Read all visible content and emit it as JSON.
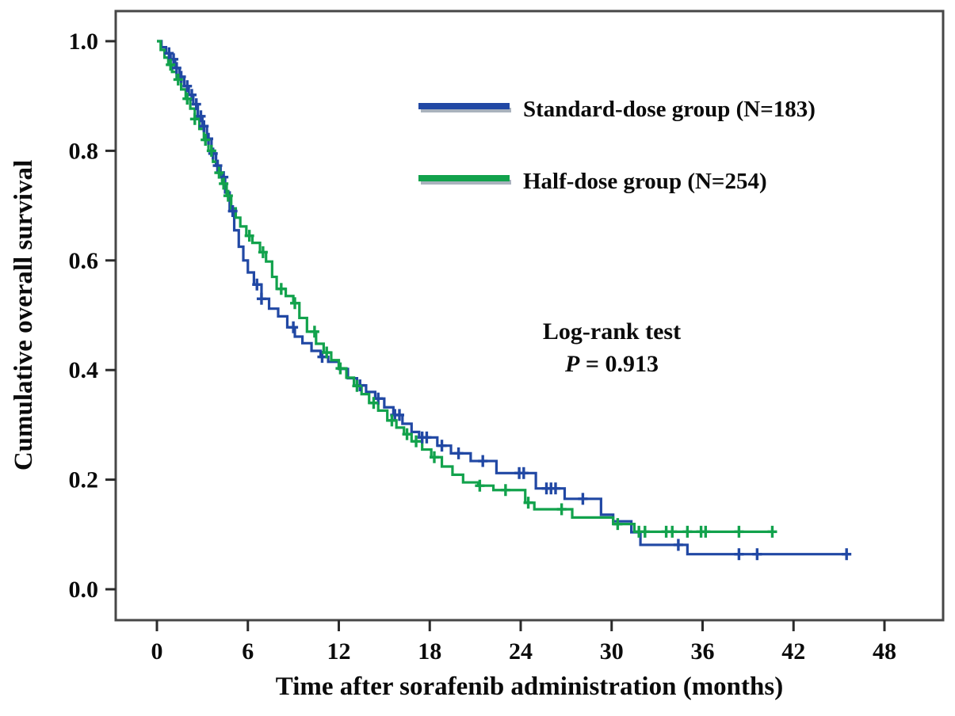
{
  "figure": {
    "background": "#ffffff",
    "frame_color": "#474747",
    "tick_color": "#2b2b2b",
    "text_color": "#0b0b0b"
  },
  "chart_data": {
    "type": "line",
    "subtype": "kaplan-meier-step",
    "title": "",
    "xlabel": "Time after sorafenib administration (months)",
    "ylabel": "Cumulative overall survival",
    "xlim": [
      0,
      48
    ],
    "ylim": [
      0.0,
      1.0
    ],
    "grid": false,
    "legend_position": "upper right inside",
    "x_ticks": [
      0,
      6,
      12,
      18,
      24,
      30,
      36,
      42,
      48
    ],
    "x_tick_labels": [
      "0",
      "6",
      "12",
      "18",
      "24",
      "30",
      "36",
      "42",
      "48"
    ],
    "y_ticks": [
      1.0,
      0.8,
      0.6,
      0.4,
      0.2,
      0.0
    ],
    "y_tick_labels": [
      "1.0",
      "0.8",
      "0.6",
      "0.4",
      "0.2",
      "0.0"
    ],
    "annotation": {
      "title": "Log-rank test",
      "p_symbol": "P",
      "p_rest": " = 0.913",
      "p_value": "0.913"
    },
    "series": [
      {
        "name": "Standard-dose group (N=183)",
        "n": 183,
        "color": "#2148a4",
        "end": 45.5,
        "steps": [
          [
            0,
            1.0
          ],
          [
            0.3,
            0.989
          ],
          [
            0.6,
            0.978
          ],
          [
            0.9,
            0.967
          ],
          [
            1.2,
            0.951
          ],
          [
            1.5,
            0.935
          ],
          [
            1.8,
            0.918
          ],
          [
            2.1,
            0.902
          ],
          [
            2.4,
            0.885
          ],
          [
            2.7,
            0.863
          ],
          [
            3.0,
            0.845
          ],
          [
            3.3,
            0.822
          ],
          [
            3.6,
            0.795
          ],
          [
            3.9,
            0.773
          ],
          [
            4.2,
            0.752
          ],
          [
            4.5,
            0.724
          ],
          [
            4.8,
            0.69
          ],
          [
            5.1,
            0.655
          ],
          [
            5.4,
            0.625
          ],
          [
            5.7,
            0.6
          ],
          [
            6.0,
            0.578
          ],
          [
            6.4,
            0.556
          ],
          [
            6.9,
            0.53
          ],
          [
            7.4,
            0.512
          ],
          [
            8.0,
            0.498
          ],
          [
            8.6,
            0.478
          ],
          [
            9.1,
            0.461
          ],
          [
            9.6,
            0.449
          ],
          [
            10.2,
            0.435
          ],
          [
            10.8,
            0.424
          ],
          [
            11.3,
            0.415
          ],
          [
            12.0,
            0.402
          ],
          [
            12.6,
            0.385
          ],
          [
            13.2,
            0.372
          ],
          [
            13.8,
            0.36
          ],
          [
            14.4,
            0.348
          ],
          [
            15.0,
            0.332
          ],
          [
            15.6,
            0.318
          ],
          [
            16.2,
            0.302
          ],
          [
            16.8,
            0.287
          ],
          [
            17.3,
            0.277
          ],
          [
            18.5,
            0.262
          ],
          [
            19.4,
            0.248
          ],
          [
            20.7,
            0.234
          ],
          [
            22.4,
            0.212
          ],
          [
            25.0,
            0.184
          ],
          [
            26.9,
            0.165
          ],
          [
            29.3,
            0.136
          ],
          [
            30.1,
            0.124
          ],
          [
            31.3,
            0.104
          ],
          [
            31.9,
            0.081
          ],
          [
            35.0,
            0.064
          ]
        ],
        "censor_times": [
          0.8,
          1.1,
          1.3,
          1.6,
          2.0,
          2.3,
          2.6,
          2.9,
          3.1,
          3.4,
          3.7,
          4.0,
          4.4,
          5.0,
          6.6,
          6.9,
          9.0,
          10.9,
          13.4,
          14.6,
          15.7,
          16.0,
          17.5,
          17.8,
          18.8,
          19.9,
          21.5,
          23.9,
          24.2,
          25.7,
          26.0,
          26.3,
          28.1,
          34.4,
          38.4,
          39.6,
          45.5
        ]
      },
      {
        "name": "Half-dose group (N=254)",
        "n": 254,
        "color": "#12a24c",
        "end": 40.6,
        "steps": [
          [
            0,
            1.0
          ],
          [
            0.25,
            0.984
          ],
          [
            0.5,
            0.97
          ],
          [
            0.75,
            0.957
          ],
          [
            1.0,
            0.944
          ],
          [
            1.3,
            0.93
          ],
          [
            1.6,
            0.912
          ],
          [
            1.9,
            0.895
          ],
          [
            2.2,
            0.877
          ],
          [
            2.5,
            0.858
          ],
          [
            2.8,
            0.84
          ],
          [
            3.1,
            0.82
          ],
          [
            3.4,
            0.8
          ],
          [
            3.7,
            0.78
          ],
          [
            4.0,
            0.76
          ],
          [
            4.3,
            0.74
          ],
          [
            4.6,
            0.718
          ],
          [
            4.9,
            0.695
          ],
          [
            5.2,
            0.678
          ],
          [
            5.5,
            0.662
          ],
          [
            5.9,
            0.645
          ],
          [
            6.3,
            0.632
          ],
          [
            6.8,
            0.615
          ],
          [
            7.2,
            0.598
          ],
          [
            7.6,
            0.57
          ],
          [
            7.9,
            0.548
          ],
          [
            8.5,
            0.535
          ],
          [
            9.0,
            0.522
          ],
          [
            9.4,
            0.495
          ],
          [
            9.9,
            0.47
          ],
          [
            10.5,
            0.448
          ],
          [
            11.0,
            0.432
          ],
          [
            11.5,
            0.418
          ],
          [
            12.0,
            0.403
          ],
          [
            12.5,
            0.386
          ],
          [
            13.0,
            0.371
          ],
          [
            13.5,
            0.356
          ],
          [
            14.0,
            0.34
          ],
          [
            14.6,
            0.326
          ],
          [
            15.2,
            0.308
          ],
          [
            15.8,
            0.295
          ],
          [
            16.3,
            0.283
          ],
          [
            16.8,
            0.27
          ],
          [
            17.5,
            0.255
          ],
          [
            18.1,
            0.241
          ],
          [
            18.8,
            0.224
          ],
          [
            19.5,
            0.209
          ],
          [
            20.2,
            0.195
          ],
          [
            21.2,
            0.189
          ],
          [
            22.2,
            0.181
          ],
          [
            24.3,
            0.158
          ],
          [
            24.9,
            0.146
          ],
          [
            27.4,
            0.131
          ],
          [
            30.1,
            0.119
          ],
          [
            31.5,
            0.105
          ]
        ],
        "censor_times": [
          0.9,
          1.4,
          2.0,
          2.5,
          3.2,
          3.6,
          4.1,
          4.4,
          4.7,
          6.1,
          7.0,
          8.2,
          9.1,
          10.4,
          11.2,
          12.1,
          13.2,
          14.3,
          15.5,
          16.5,
          17.1,
          18.3,
          21.3,
          23.0,
          24.5,
          26.7,
          30.4,
          31.8,
          32.2,
          33.6,
          34.0,
          35.0,
          35.9,
          36.2,
          38.4,
          40.6
        ]
      }
    ]
  }
}
